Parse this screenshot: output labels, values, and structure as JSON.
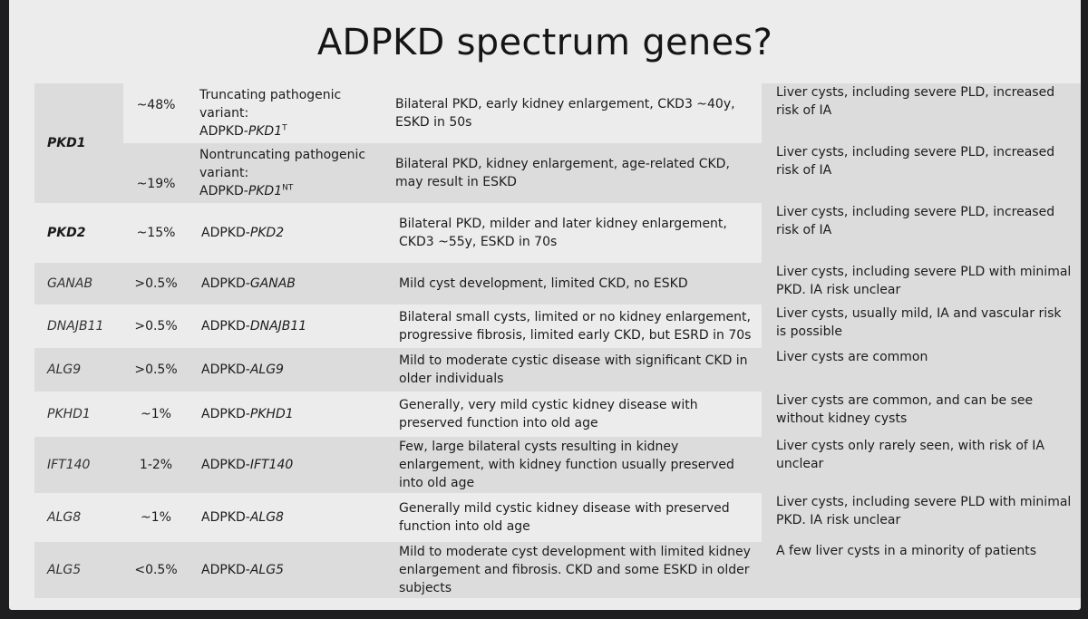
{
  "title": "ADPKD spectrum genes?",
  "pkd1": {
    "gene": "PKD1",
    "truncating": {
      "freq": "~48%",
      "variant_lines": [
        "Truncating pathogenic",
        "variant:"
      ],
      "name_prefix": "ADPKD-",
      "name_gene": "PKD1",
      "name_sup": "T",
      "kidney": "Bilateral PKD, early kidney enlargement, CKD3 ~40y, ESKD in 50s",
      "liver": "Liver cysts, including severe PLD, increased risk of IA"
    },
    "nontruncating": {
      "freq": "~19%",
      "variant_lines": [
        "Nontruncating pathogenic",
        "variant:"
      ],
      "name_prefix": "ADPKD-",
      "name_gene": "PKD1",
      "name_sup": "NT",
      "kidney": "Bilateral PKD, kidney enlargement, age-related CKD, may result in ESKD",
      "liver": "Liver cysts, including severe PLD, increased risk of IA"
    }
  },
  "rows": [
    {
      "gene": "PKD2",
      "freq": "~15%",
      "name_prefix": "ADPKD-",
      "name_gene": "PKD2",
      "kidney": "Bilateral PKD, milder and later kidney enlargement, CKD3 ~55y, ESKD in 70s",
      "liver": "Liver cysts, including severe PLD, increased risk of IA"
    },
    {
      "gene": "GANAB",
      "freq": ">0.5%",
      "name_prefix": "ADPKD-",
      "name_gene": "GANAB",
      "kidney": "Mild cyst development, limited CKD, no ESKD",
      "liver": "Liver cysts, including severe PLD with minimal PKD. IA risk unclear"
    },
    {
      "gene": "DNAJB11",
      "freq": ">0.5%",
      "name_prefix": "ADPKD-",
      "name_gene": "DNAJB11",
      "kidney": "Bilateral small cysts, limited or no kidney enlargement, progressive fibrosis, limited early CKD, but ESRD in 70s",
      "liver": "Liver cysts, usually mild, IA and vascular risk is possible"
    },
    {
      "gene": "ALG9",
      "freq": ">0.5%",
      "name_prefix": "ADPKD-",
      "name_gene": "ALG9",
      "kidney": "Mild to moderate cystic disease with significant CKD in older individuals",
      "liver": "Liver cysts are common"
    },
    {
      "gene": "PKHD1",
      "freq": "~1%",
      "name_prefix": "ADPKD-",
      "name_gene": "PKHD1",
      "kidney": "Generally, very mild cystic kidney disease with preserved function into old age",
      "liver": "Liver cysts are common, and can be see without kidney cysts"
    },
    {
      "gene": "IFT140",
      "freq": "1-2%",
      "name_prefix": "ADPKD-",
      "name_gene": "IFT140",
      "kidney": "Few, large bilateral cysts resulting in kidney enlargement, with kidney function usually preserved into old age",
      "liver": "Liver cysts only rarely seen, with risk of IA unclear"
    },
    {
      "gene": "ALG8",
      "freq": "~1%",
      "name_prefix": "ADPKD-",
      "name_gene": "ALG8",
      "kidney": "Generally mild cystic kidney disease with preserved function into old age",
      "liver": "Liver cysts, including severe PLD with minimal PKD. IA risk unclear"
    },
    {
      "gene": "ALG5",
      "freq": "<0.5%",
      "name_prefix": "ADPKD-",
      "name_gene": "ALG5",
      "kidney": "Mild to moderate cyst development with limited kidney enlargement and fibrosis. CKD and some ESKD in older subjects",
      "liver": "A few liver cysts in a minority of patients"
    }
  ]
}
